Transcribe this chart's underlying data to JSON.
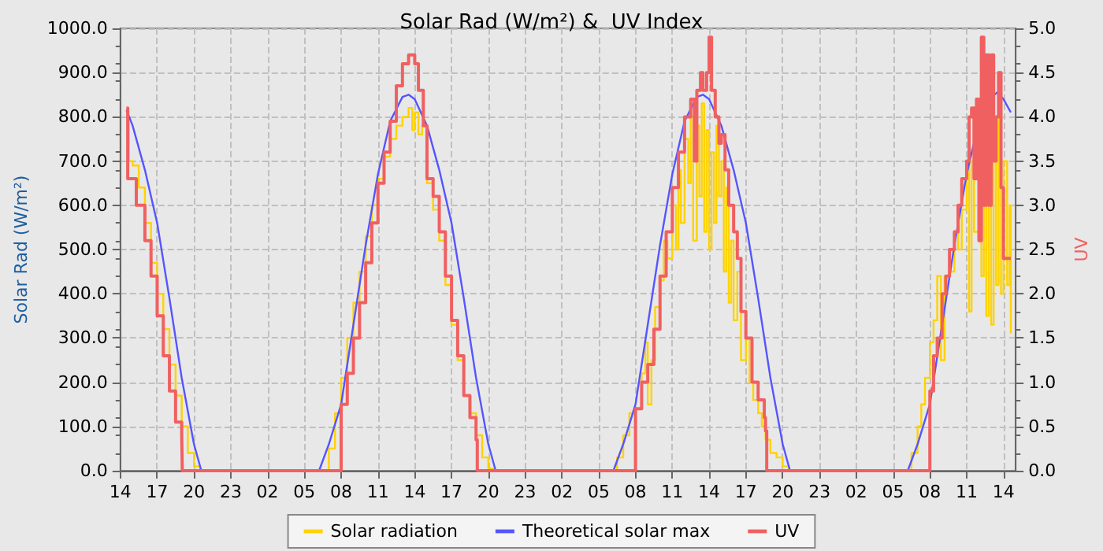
{
  "chart_data": {
    "type": "line",
    "title": "Solar Rad (W/m²) &  UV Index",
    "ylabel": "Solar Rad (W/m²)",
    "y2label": "UV",
    "xlim": [
      "--01-01T14:00",
      "--01-04T15:00"
    ],
    "xticks": [
      {
        "value": "--01-01T14:00",
        "label": "14"
      },
      {
        "value": "--01-01T17:00",
        "label": "17"
      },
      {
        "value": "--01-01T20:00",
        "label": "20"
      },
      {
        "value": "--01-01T23:00",
        "label": "23"
      },
      {
        "value": "--01-02T02:00",
        "label": "02"
      },
      {
        "value": "--01-02T05:00",
        "label": "05"
      },
      {
        "value": "--01-02T08:00",
        "label": "08"
      },
      {
        "value": "--01-02T11:00",
        "label": "11"
      },
      {
        "value": "--01-02T14:00",
        "label": "14"
      },
      {
        "value": "--01-02T17:00",
        "label": "17"
      },
      {
        "value": "--01-02T20:00",
        "label": "20"
      },
      {
        "value": "--01-02T23:00",
        "label": "23"
      },
      {
        "value": "--01-03T02:00",
        "label": "02"
      },
      {
        "value": "--01-03T05:00",
        "label": "05"
      },
      {
        "value": "--01-03T08:00",
        "label": "08"
      },
      {
        "value": "--01-03T11:00",
        "label": "11"
      },
      {
        "value": "--01-03T14:00",
        "label": "14"
      },
      {
        "value": "--01-03T17:00",
        "label": "17"
      },
      {
        "value": "--01-03T20:00",
        "label": "20"
      },
      {
        "value": "--01-03T23:00",
        "label": "23"
      },
      {
        "value": "--01-04T02:00",
        "label": "02"
      },
      {
        "value": "--01-04T05:00",
        "label": "05"
      },
      {
        "value": "--01-04T08:00",
        "label": "08"
      },
      {
        "value": "--01-04T11:00",
        "label": "11"
      },
      {
        "value": "--01-04T14:00",
        "label": "14"
      }
    ],
    "ylim": [
      0,
      1000
    ],
    "yticks": [
      {
        "value": 0,
        "label": "0.0"
      },
      {
        "value": 100,
        "label": "100.0"
      },
      {
        "value": 200,
        "label": "200.0"
      },
      {
        "value": 300,
        "label": "300.0"
      },
      {
        "value": 400,
        "label": "400.0"
      },
      {
        "value": 500,
        "label": "500.0"
      },
      {
        "value": 600,
        "label": "600.0"
      },
      {
        "value": 700,
        "label": "700.0"
      },
      {
        "value": 800,
        "label": "800.0"
      },
      {
        "value": 900,
        "label": "900.0"
      },
      {
        "value": 1000,
        "label": "1000.0"
      }
    ],
    "y2lim": [
      0,
      5
    ],
    "y2ticks": [
      {
        "value": 0,
        "label": "0.0"
      },
      {
        "value": 0.5,
        "label": "0.5"
      },
      {
        "value": 1,
        "label": "1.0"
      },
      {
        "value": 1.5,
        "label": "1.5"
      },
      {
        "value": 2,
        "label": "2.0"
      },
      {
        "value": 2.5,
        "label": "2.5"
      },
      {
        "value": 3,
        "label": "3.0"
      },
      {
        "value": 3.5,
        "label": "3.5"
      },
      {
        "value": 4,
        "label": "4.0"
      },
      {
        "value": 4.5,
        "label": "4.5"
      },
      {
        "value": 5,
        "label": "5.0"
      }
    ],
    "grid": true,
    "legend": "bottom",
    "marker": "none",
    "line_style": "solid",
    "series": [
      {
        "name": "Solar radiation",
        "type": "step",
        "color": "#ffd200",
        "x": [
          "--01-01T14:30",
          "--01-01T14:42",
          "--01-01T15:00",
          "--01-01T15:30",
          "--01-01T16:00",
          "--01-01T16:30",
          "--01-01T17:00",
          "--01-01T17:30",
          "--01-01T18:00",
          "--01-01T18:30",
          "--01-01T19:00",
          "--01-01T19:30",
          "--01-01T20:00",
          "--01-01T20:30",
          "--01-02T06:30",
          "--01-02T07:00",
          "--01-02T07:30",
          "--01-02T08:00",
          "--01-02T08:30",
          "--01-02T09:00",
          "--01-02T09:30",
          "--01-02T10:00",
          "--01-02T10:30",
          "--01-02T11:00",
          "--01-02T11:30",
          "--01-02T12:00",
          "--01-02T12:30",
          "--01-02T13:00",
          "--01-02T13:30",
          "--01-02T13:48",
          "--01-02T14:00",
          "--01-02T14:18",
          "--01-02T14:36",
          "--01-02T15:00",
          "--01-02T15:30",
          "--01-02T16:00",
          "--01-02T16:30",
          "--01-02T17:00",
          "--01-02T17:30",
          "--01-02T18:00",
          "--01-02T18:30",
          "--01-02T19:00",
          "--01-02T19:30",
          "--01-02T20:00",
          "--01-02T20:24",
          "--01-03T06:00",
          "--01-03T06:30",
          "--01-03T07:00",
          "--01-03T07:30",
          "--01-03T08:00",
          "--01-03T08:30",
          "--01-03T08:48",
          "--01-03T09:00",
          "--01-03T09:18",
          "--01-03T09:36",
          "--01-03T10:00",
          "--01-03T10:18",
          "--01-03T10:36",
          "--01-03T11:00",
          "--01-03T11:18",
          "--01-03T11:30",
          "--01-03T11:42",
          "--01-03T12:00",
          "--01-03T12:18",
          "--01-03T12:30",
          "--01-03T12:42",
          "--01-03T13:00",
          "--01-03T13:12",
          "--01-03T13:24",
          "--01-03T13:36",
          "--01-03T13:48",
          "--01-03T14:00",
          "--01-03T14:12",
          "--01-03T14:24",
          "--01-03T14:36",
          "--01-03T14:48",
          "--01-03T15:00",
          "--01-03T15:12",
          "--01-03T15:24",
          "--01-03T15:36",
          "--01-03T15:48",
          "--01-03T16:00",
          "--01-03T16:18",
          "--01-03T16:36",
          "--01-03T17:00",
          "--01-03T17:18",
          "--01-03T17:36",
          "--01-03T18:00",
          "--01-03T18:18",
          "--01-03T18:36",
          "--01-03T19:00",
          "--01-03T19:30",
          "--01-03T20:00",
          "--01-03T20:30",
          "--01-04T06:00",
          "--01-04T06:30",
          "--01-04T07:00",
          "--01-04T07:18",
          "--01-04T07:36",
          "--01-04T08:00",
          "--01-04T08:18",
          "--01-04T08:36",
          "--01-04T08:54",
          "--01-04T09:12",
          "--01-04T09:36",
          "--01-04T10:00",
          "--01-04T10:18",
          "--01-04T10:36",
          "--01-04T11:00",
          "--01-04T11:12",
          "--01-04T11:24",
          "--01-04T11:36",
          "--01-04T12:00",
          "--01-04T12:12",
          "--01-04T12:24",
          "--01-04T12:36",
          "--01-04T12:48",
          "--01-04T13:00",
          "--01-04T13:12",
          "--01-04T13:24",
          "--01-04T13:36",
          "--01-04T13:48",
          "--01-04T14:00",
          "--01-04T14:18",
          "--01-04T14:30",
          "--01-04T14:36"
        ],
        "values": [
          790,
          700,
          690,
          640,
          560,
          470,
          400,
          320,
          240,
          170,
          100,
          40,
          10,
          0,
          0,
          50,
          130,
          210,
          300,
          380,
          450,
          530,
          600,
          660,
          710,
          750,
          780,
          800,
          820,
          770,
          810,
          760,
          780,
          650,
          590,
          520,
          420,
          330,
          250,
          170,
          130,
          80,
          30,
          5,
          0,
          0,
          30,
          80,
          130,
          140,
          220,
          290,
          150,
          250,
          370,
          430,
          520,
          480,
          600,
          500,
          680,
          560,
          750,
          650,
          800,
          520,
          780,
          620,
          830,
          540,
          770,
          500,
          720,
          560,
          780,
          620,
          700,
          450,
          640,
          380,
          520,
          340,
          450,
          250,
          300,
          200,
          160,
          130,
          100,
          70,
          40,
          30,
          10,
          0,
          0,
          40,
          100,
          150,
          210,
          290,
          340,
          440,
          250,
          440,
          450,
          540,
          500,
          590,
          700,
          360,
          700,
          540,
          730,
          440,
          700,
          350,
          820,
          330,
          700,
          420,
          800,
          400,
          700,
          420,
          600,
          310
        ]
      },
      {
        "name": "Theoretical solar max",
        "type": "line",
        "color": "#5555ff",
        "x": [
          "--01-01T14:30",
          "--01-01T15:00",
          "--01-01T16:00",
          "--01-01T17:00",
          "--01-01T18:00",
          "--01-01T19:00",
          "--01-01T20:00",
          "--01-01T20:36",
          "--01-02T06:12",
          "--01-02T07:00",
          "--01-02T08:00",
          "--01-02T09:00",
          "--01-02T10:00",
          "--01-02T11:00",
          "--01-02T12:00",
          "--01-02T13:00",
          "--01-02T13:30",
          "--01-02T14:00",
          "--01-02T15:00",
          "--01-02T16:00",
          "--01-02T17:00",
          "--01-02T18:00",
          "--01-02T19:00",
          "--01-02T20:00",
          "--01-02T20:36",
          "--01-03T06:12",
          "--01-03T07:00",
          "--01-03T08:00",
          "--01-03T09:00",
          "--01-03T10:00",
          "--01-03T11:00",
          "--01-03T12:00",
          "--01-03T13:00",
          "--01-03T13:30",
          "--01-03T14:00",
          "--01-03T15:00",
          "--01-03T16:00",
          "--01-03T17:00",
          "--01-03T18:00",
          "--01-03T19:00",
          "--01-03T20:00",
          "--01-03T20:36",
          "--01-04T06:12",
          "--01-04T07:00",
          "--01-04T08:00",
          "--01-04T09:00",
          "--01-04T10:00",
          "--01-04T11:00",
          "--01-04T12:00",
          "--01-04T13:00",
          "--01-04T13:30",
          "--01-04T14:00",
          "--01-04T14:36"
        ],
        "values": [
          815,
          780,
          680,
          560,
          390,
          210,
          60,
          0,
          0,
          60,
          150,
          330,
          510,
          670,
          790,
          845,
          850,
          840,
          780,
          680,
          560,
          390,
          210,
          60,
          0,
          0,
          60,
          150,
          330,
          510,
          670,
          790,
          845,
          850,
          840,
          780,
          680,
          560,
          390,
          210,
          60,
          0,
          0,
          60,
          150,
          330,
          510,
          670,
          790,
          845,
          855,
          840,
          810
        ]
      },
      {
        "name": "UV",
        "type": "step",
        "axis": "y2",
        "color": "#f06060",
        "x": [
          "--01-01T14:30",
          "--01-01T14:36",
          "--01-01T15:00",
          "--01-01T15:18",
          "--01-01T16:00",
          "--01-01T16:30",
          "--01-01T17:00",
          "--01-01T17:30",
          "--01-01T18:00",
          "--01-01T18:30",
          "--01-01T19:00",
          "--01-01T19:03",
          "--01-02T07:36",
          "--01-02T08:00",
          "--01-02T08:30",
          "--01-02T09:00",
          "--01-02T09:30",
          "--01-02T10:00",
          "--01-02T10:30",
          "--01-02T11:00",
          "--01-02T11:30",
          "--01-02T12:00",
          "--01-02T12:30",
          "--01-02T13:00",
          "--01-02T13:30",
          "--01-02T14:00",
          "--01-02T14:18",
          "--01-02T14:42",
          "--01-02T15:00",
          "--01-02T15:30",
          "--01-02T16:00",
          "--01-02T16:30",
          "--01-02T17:00",
          "--01-02T17:30",
          "--01-02T18:00",
          "--01-02T18:30",
          "--01-02T19:00",
          "--01-02T19:06",
          "--01-03T07:36",
          "--01-03T08:00",
          "--01-03T08:30",
          "--01-03T09:00",
          "--01-03T09:30",
          "--01-03T10:00",
          "--01-03T10:30",
          "--01-03T11:00",
          "--01-03T11:30",
          "--01-03T12:00",
          "--01-03T12:30",
          "--01-03T12:48",
          "--01-03T13:00",
          "--01-03T13:18",
          "--01-03T13:30",
          "--01-03T13:48",
          "--01-03T14:00",
          "--01-03T14:12",
          "--01-03T14:30",
          "--01-03T14:48",
          "--01-03T15:00",
          "--01-03T15:18",
          "--01-03T15:36",
          "--01-03T16:00",
          "--01-03T16:18",
          "--01-03T16:36",
          "--01-03T17:00",
          "--01-03T17:30",
          "--01-03T18:00",
          "--01-03T18:30",
          "--01-03T18:36",
          "--01-03T18:42",
          "--01-04T07:42",
          "--01-04T08:00",
          "--01-04T08:18",
          "--01-04T08:36",
          "--01-04T09:00",
          "--01-04T09:18",
          "--01-04T09:36",
          "--01-04T10:00",
          "--01-04T10:18",
          "--01-04T10:36",
          "--01-04T11:00",
          "--01-04T11:12",
          "--01-04T11:24",
          "--01-04T11:36",
          "--01-04T11:48",
          "--01-04T12:00",
          "--01-04T12:12",
          "--01-04T12:24",
          "--01-04T12:36",
          "--01-04T12:48",
          "--01-04T13:00",
          "--01-04T13:12",
          "--01-04T13:24",
          "--01-04T13:36",
          "--01-04T13:48",
          "--01-04T14:00",
          "--01-04T14:36"
        ],
        "values": [
          4.1,
          3.3,
          3.3,
          3,
          2.6,
          2.2,
          1.75,
          1.3,
          0.9,
          0.55,
          0.4,
          0,
          0,
          0.75,
          1.1,
          1.5,
          1.9,
          2.35,
          2.8,
          3.25,
          3.6,
          3.95,
          4.35,
          4.6,
          4.7,
          4.6,
          4.3,
          3.9,
          3.3,
          3.1,
          2.7,
          2.2,
          1.7,
          1.3,
          0.85,
          0.6,
          0.35,
          0,
          0,
          0.7,
          1,
          1.2,
          1.6,
          2.2,
          2.7,
          3.2,
          3.6,
          4,
          4.2,
          3.5,
          4.3,
          4.5,
          4.3,
          4.5,
          4.9,
          4.3,
          4,
          3.7,
          3.8,
          3.4,
          3,
          2.7,
          2.4,
          1.8,
          1.5,
          1,
          0.8,
          0.6,
          0.45,
          0,
          0,
          0.9,
          1.3,
          1.5,
          2,
          2.2,
          2.5,
          2.7,
          3,
          3.3,
          3.5,
          4,
          4.1,
          3.3,
          4.2,
          2.6,
          4.9,
          3,
          4.7,
          3,
          4.7,
          3.5,
          4,
          4.5,
          3.2,
          2.4,
          2.4
        ]
      }
    ]
  }
}
